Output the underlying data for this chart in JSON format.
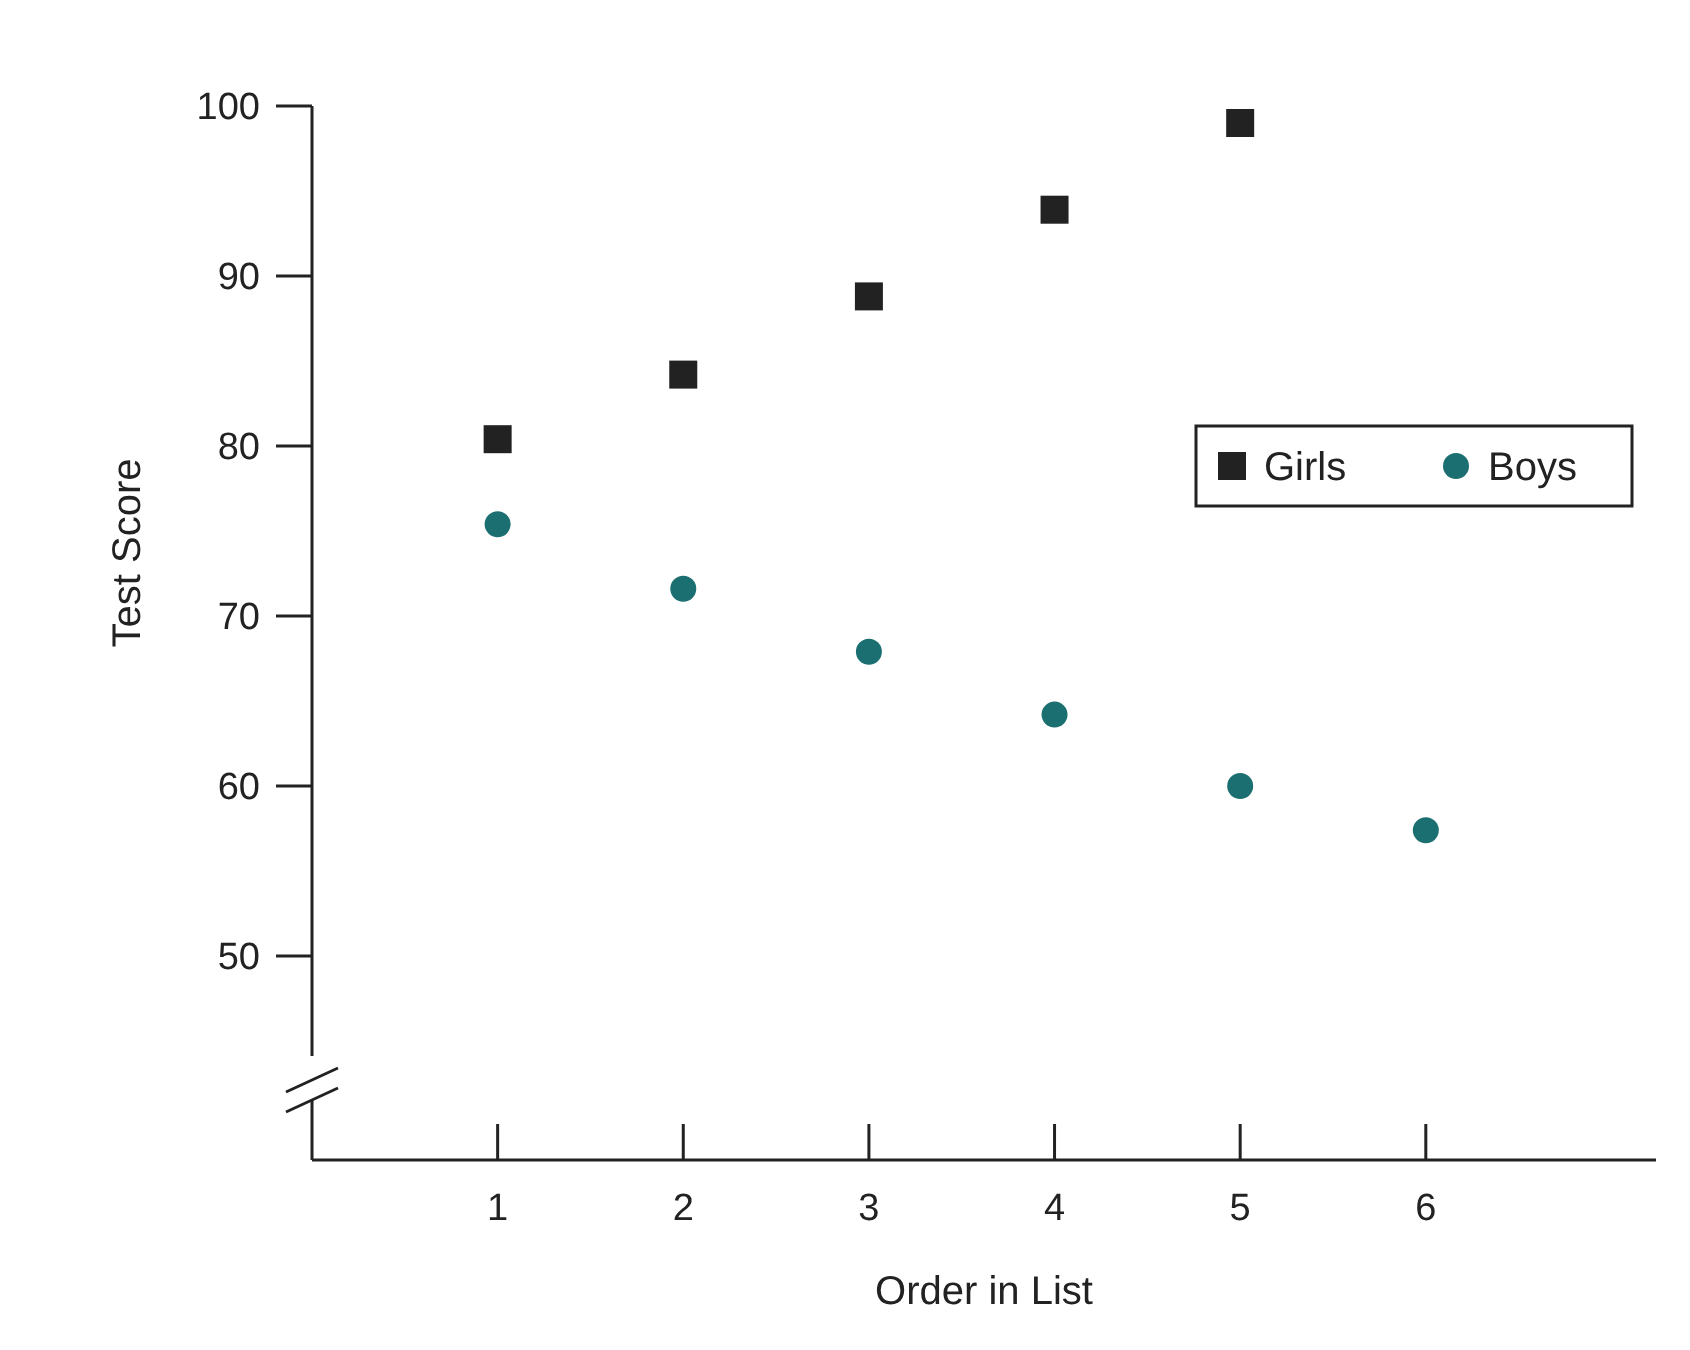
{
  "chart_data": {
    "type": "scatter",
    "xlabel": "Order in List",
    "ylabel": "Test Score",
    "x": [
      1,
      2,
      3,
      4,
      5,
      6
    ],
    "xlim": [
      0,
      7.24
    ],
    "xticks": [
      1,
      2,
      3,
      4,
      5,
      6
    ],
    "ylim": [
      38,
      100
    ],
    "yticks": [
      50,
      60,
      70,
      80,
      90,
      100
    ],
    "grid": false,
    "legend": "top right",
    "series": [
      {
        "name": "Girls",
        "color": "#222222",
        "marker": "square",
        "values": [
          80.4,
          84.2,
          88.8,
          93.9,
          99,
          null
        ]
      },
      {
        "name": "Boys",
        "color": "#1c6f70",
        "marker": "circle",
        "values": [
          75.4,
          71.6,
          67.9,
          64.2,
          60,
          57.4
        ]
      }
    ]
  }
}
